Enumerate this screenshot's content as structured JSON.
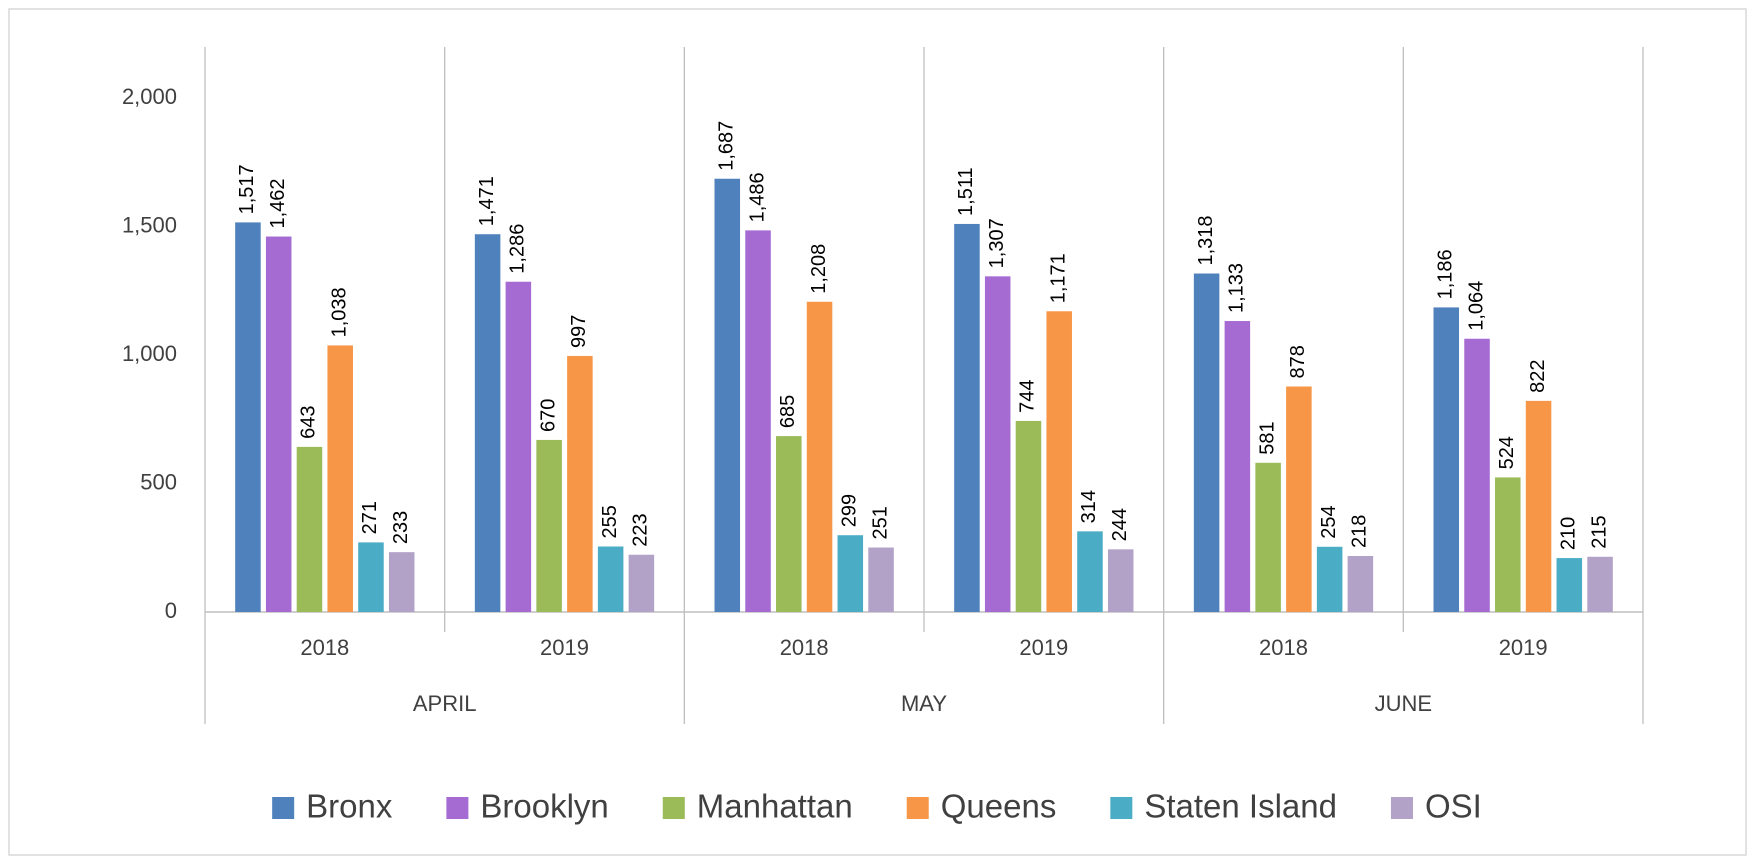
{
  "chart_data": {
    "type": "bar",
    "categories": [
      "2018",
      "2019",
      "2018",
      "2019",
      "2018",
      "2019"
    ],
    "category_groups": [
      "APRIL",
      "MAY",
      "JUNE"
    ],
    "series": [
      {
        "name": "Bronx",
        "color": "#4f81bd",
        "values": [
          1517,
          1471,
          1687,
          1511,
          1318,
          1186
        ],
        "value_labels": [
          "1,517",
          "1,471",
          "1,687",
          "1,511",
          "1,318",
          "1,186"
        ]
      },
      {
        "name": "Brooklyn",
        "color": "#a66bd3",
        "values": [
          1462,
          1286,
          1486,
          1307,
          1133,
          1064
        ],
        "value_labels": [
          "1,462",
          "1,286",
          "1,486",
          "1,307",
          "1,133",
          "1,064"
        ]
      },
      {
        "name": "Manhattan",
        "color": "#9bbb59",
        "values": [
          643,
          670,
          685,
          744,
          581,
          524
        ],
        "value_labels": [
          "643",
          "670",
          "685",
          "744",
          "581",
          "524"
        ]
      },
      {
        "name": "Queens",
        "color": "#f79646",
        "values": [
          1038,
          997,
          1208,
          1171,
          878,
          822
        ],
        "value_labels": [
          "1,038",
          "997",
          "1,208",
          "1,171",
          "878",
          "822"
        ]
      },
      {
        "name": "Staten Island",
        "color": "#4bacc6",
        "values": [
          271,
          255,
          299,
          314,
          254,
          210
        ],
        "value_labels": [
          "271",
          "255",
          "299",
          "314",
          "254",
          "210"
        ]
      },
      {
        "name": "OSI",
        "color": "#b3a2c7",
        "values": [
          233,
          223,
          251,
          244,
          218,
          215
        ],
        "value_labels": [
          "233",
          "223",
          "251",
          "244",
          "218",
          "215"
        ]
      }
    ],
    "ylim": [
      0,
      2200
    ],
    "yticks": [
      0,
      500,
      {
        "value": 1000,
        "label": "1,000"
      },
      {
        "value": 1500,
        "label": "1,500"
      },
      {
        "value": 2000,
        "label": "2,000"
      }
    ],
    "grid": false,
    "legend": "bottom"
  }
}
